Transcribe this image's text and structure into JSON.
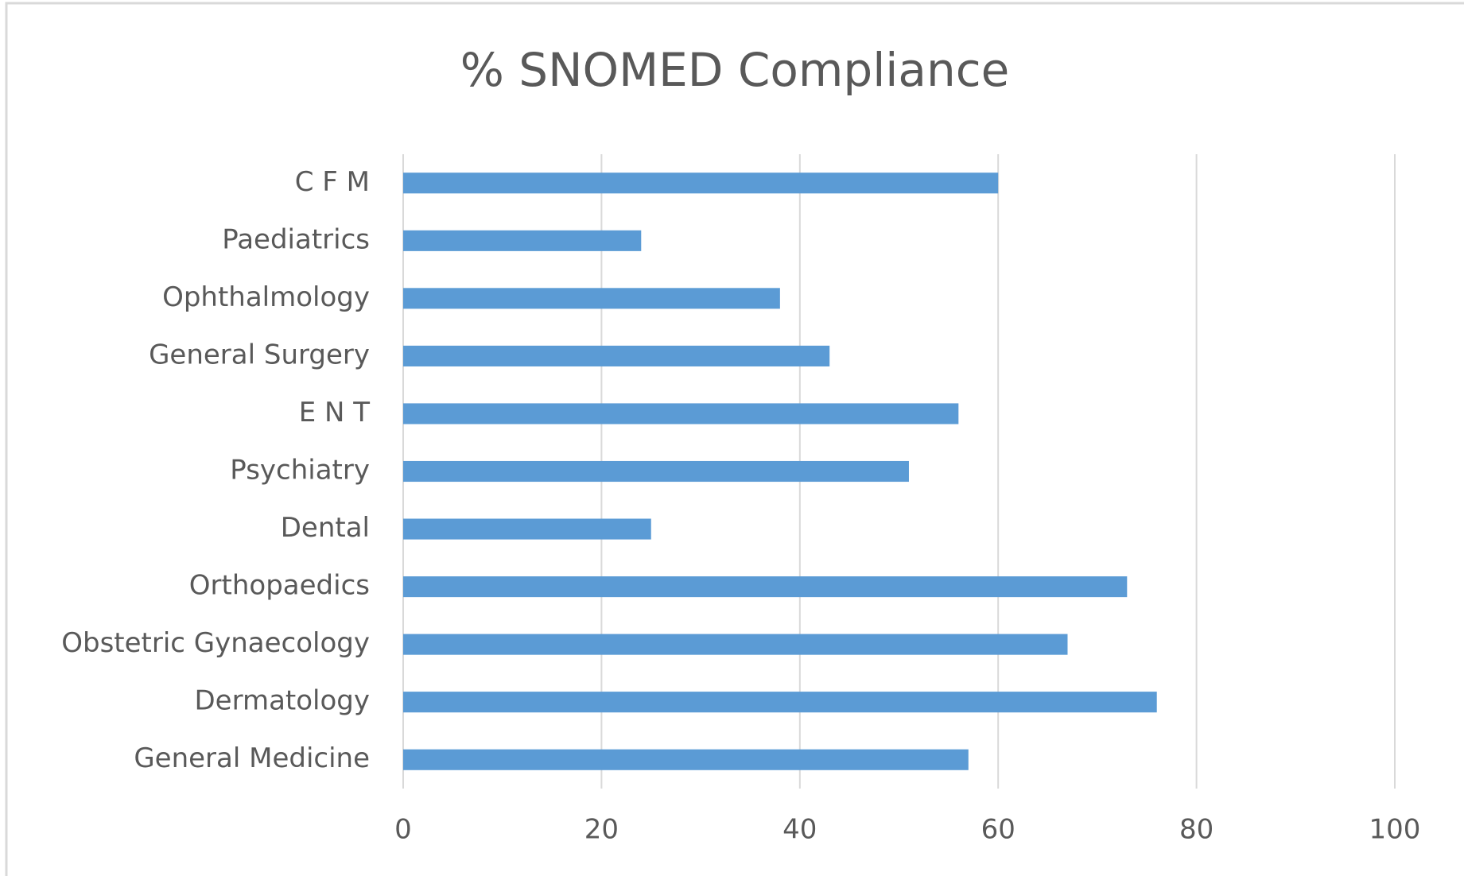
{
  "chart_data": {
    "type": "bar",
    "orientation": "horizontal",
    "title": "% SNOMED Compliance",
    "categories": [
      "C F M",
      "Paediatrics",
      "Ophthalmology",
      "General Surgery",
      "E N T",
      "Psychiatry",
      "Dental",
      "Orthopaedics",
      "Obstetric Gynaecology",
      "Dermatology",
      "General Medicine"
    ],
    "values": [
      60,
      24,
      38,
      43,
      56,
      51,
      25,
      73,
      67,
      76,
      57
    ],
    "color": "#5b9bd5",
    "xlim": [
      0,
      100
    ],
    "xticks": [
      0,
      20,
      40,
      60,
      80,
      100
    ],
    "grid": true
  }
}
